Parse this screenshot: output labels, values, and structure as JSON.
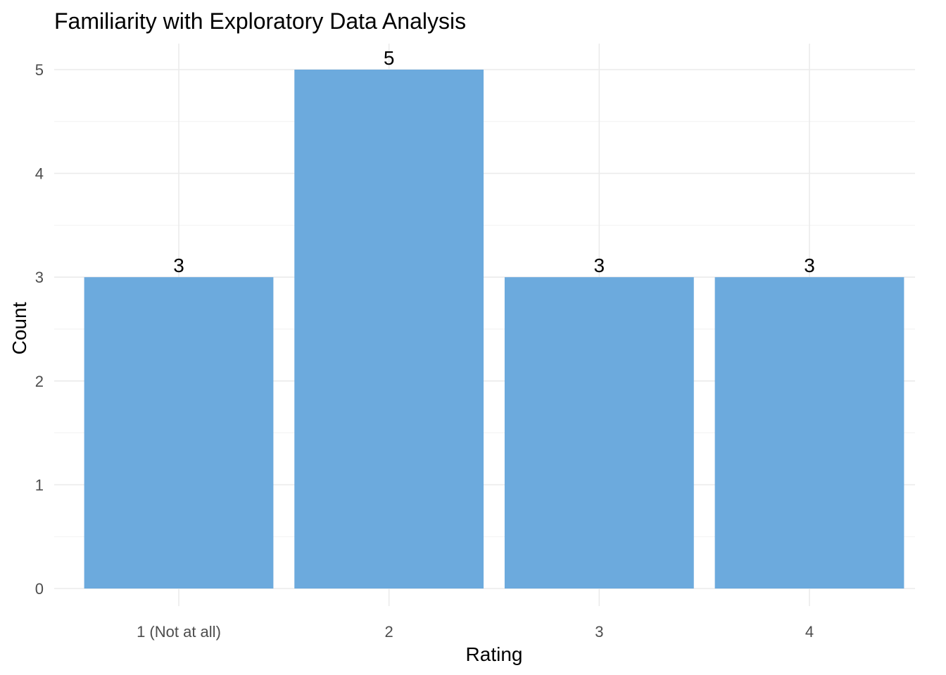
{
  "chart_data": {
    "type": "bar",
    "title": "Familiarity with Exploratory Data Analysis",
    "xlabel": "Rating",
    "ylabel": "Count",
    "categories": [
      "1 (Not at all)",
      "2",
      "3",
      "4"
    ],
    "values": [
      3,
      5,
      3,
      3
    ],
    "data_labels": [
      "3",
      "5",
      "3",
      "3"
    ],
    "ylim": [
      0,
      5
    ],
    "yticks": [
      0,
      1,
      2,
      3,
      4,
      5
    ],
    "grid": true,
    "bar_color": "#6CAADD"
  }
}
